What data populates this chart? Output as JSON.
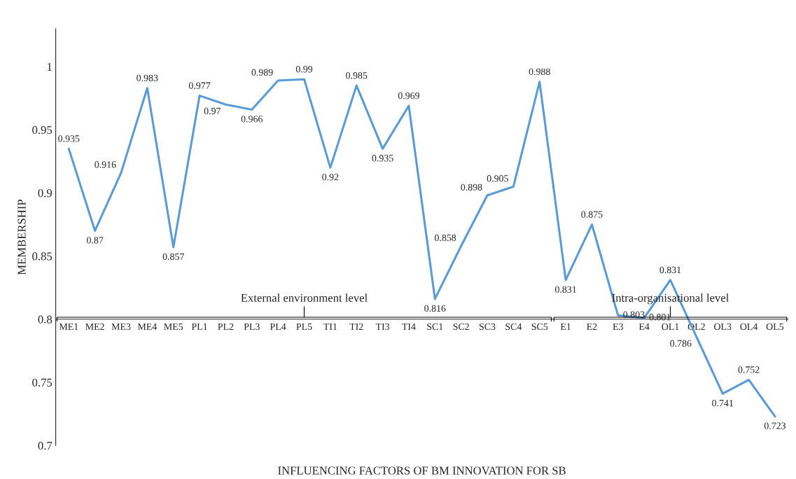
{
  "chart_data": {
    "type": "line",
    "xlabel": "INFLUENCING FACTORS OF BM INNOVATION FOR SB",
    "ylabel": "MEMBERSHIP",
    "categories": [
      "ME1",
      "ME2",
      "ME3",
      "ME4",
      "ME5",
      "PL1",
      "PL2",
      "PL3",
      "PL4",
      "PL5",
      "TI1",
      "TI2",
      "TI3",
      "TI4",
      "SC1",
      "SC2",
      "SC3",
      "SC4",
      "SC5",
      "E1",
      "E2",
      "E3",
      "E4",
      "OL1",
      "OL2",
      "OL3",
      "OL4",
      "OL5"
    ],
    "series": [
      {
        "color": "#5b9bd5",
        "values": [
          0.935,
          0.87,
          0.916,
          0.983,
          0.857,
          0.977,
          0.97,
          0.966,
          0.989,
          0.99,
          0.92,
          0.985,
          0.935,
          0.969,
          0.816,
          0.858,
          0.898,
          0.905,
          0.988,
          0.831,
          0.875,
          0.803,
          0.801,
          0.831,
          0.786,
          0.741,
          0.752,
          0.723
        ]
      }
    ],
    "ylim": [
      0.7,
      1.03
    ],
    "yticks": [
      0.7,
      0.75,
      0.8,
      0.85,
      0.9,
      0.95,
      1
    ],
    "data_labels": true,
    "marker": "none",
    "grid": false,
    "legend": false,
    "annotations": [
      "External environment level",
      "Intra-organisational level"
    ]
  }
}
